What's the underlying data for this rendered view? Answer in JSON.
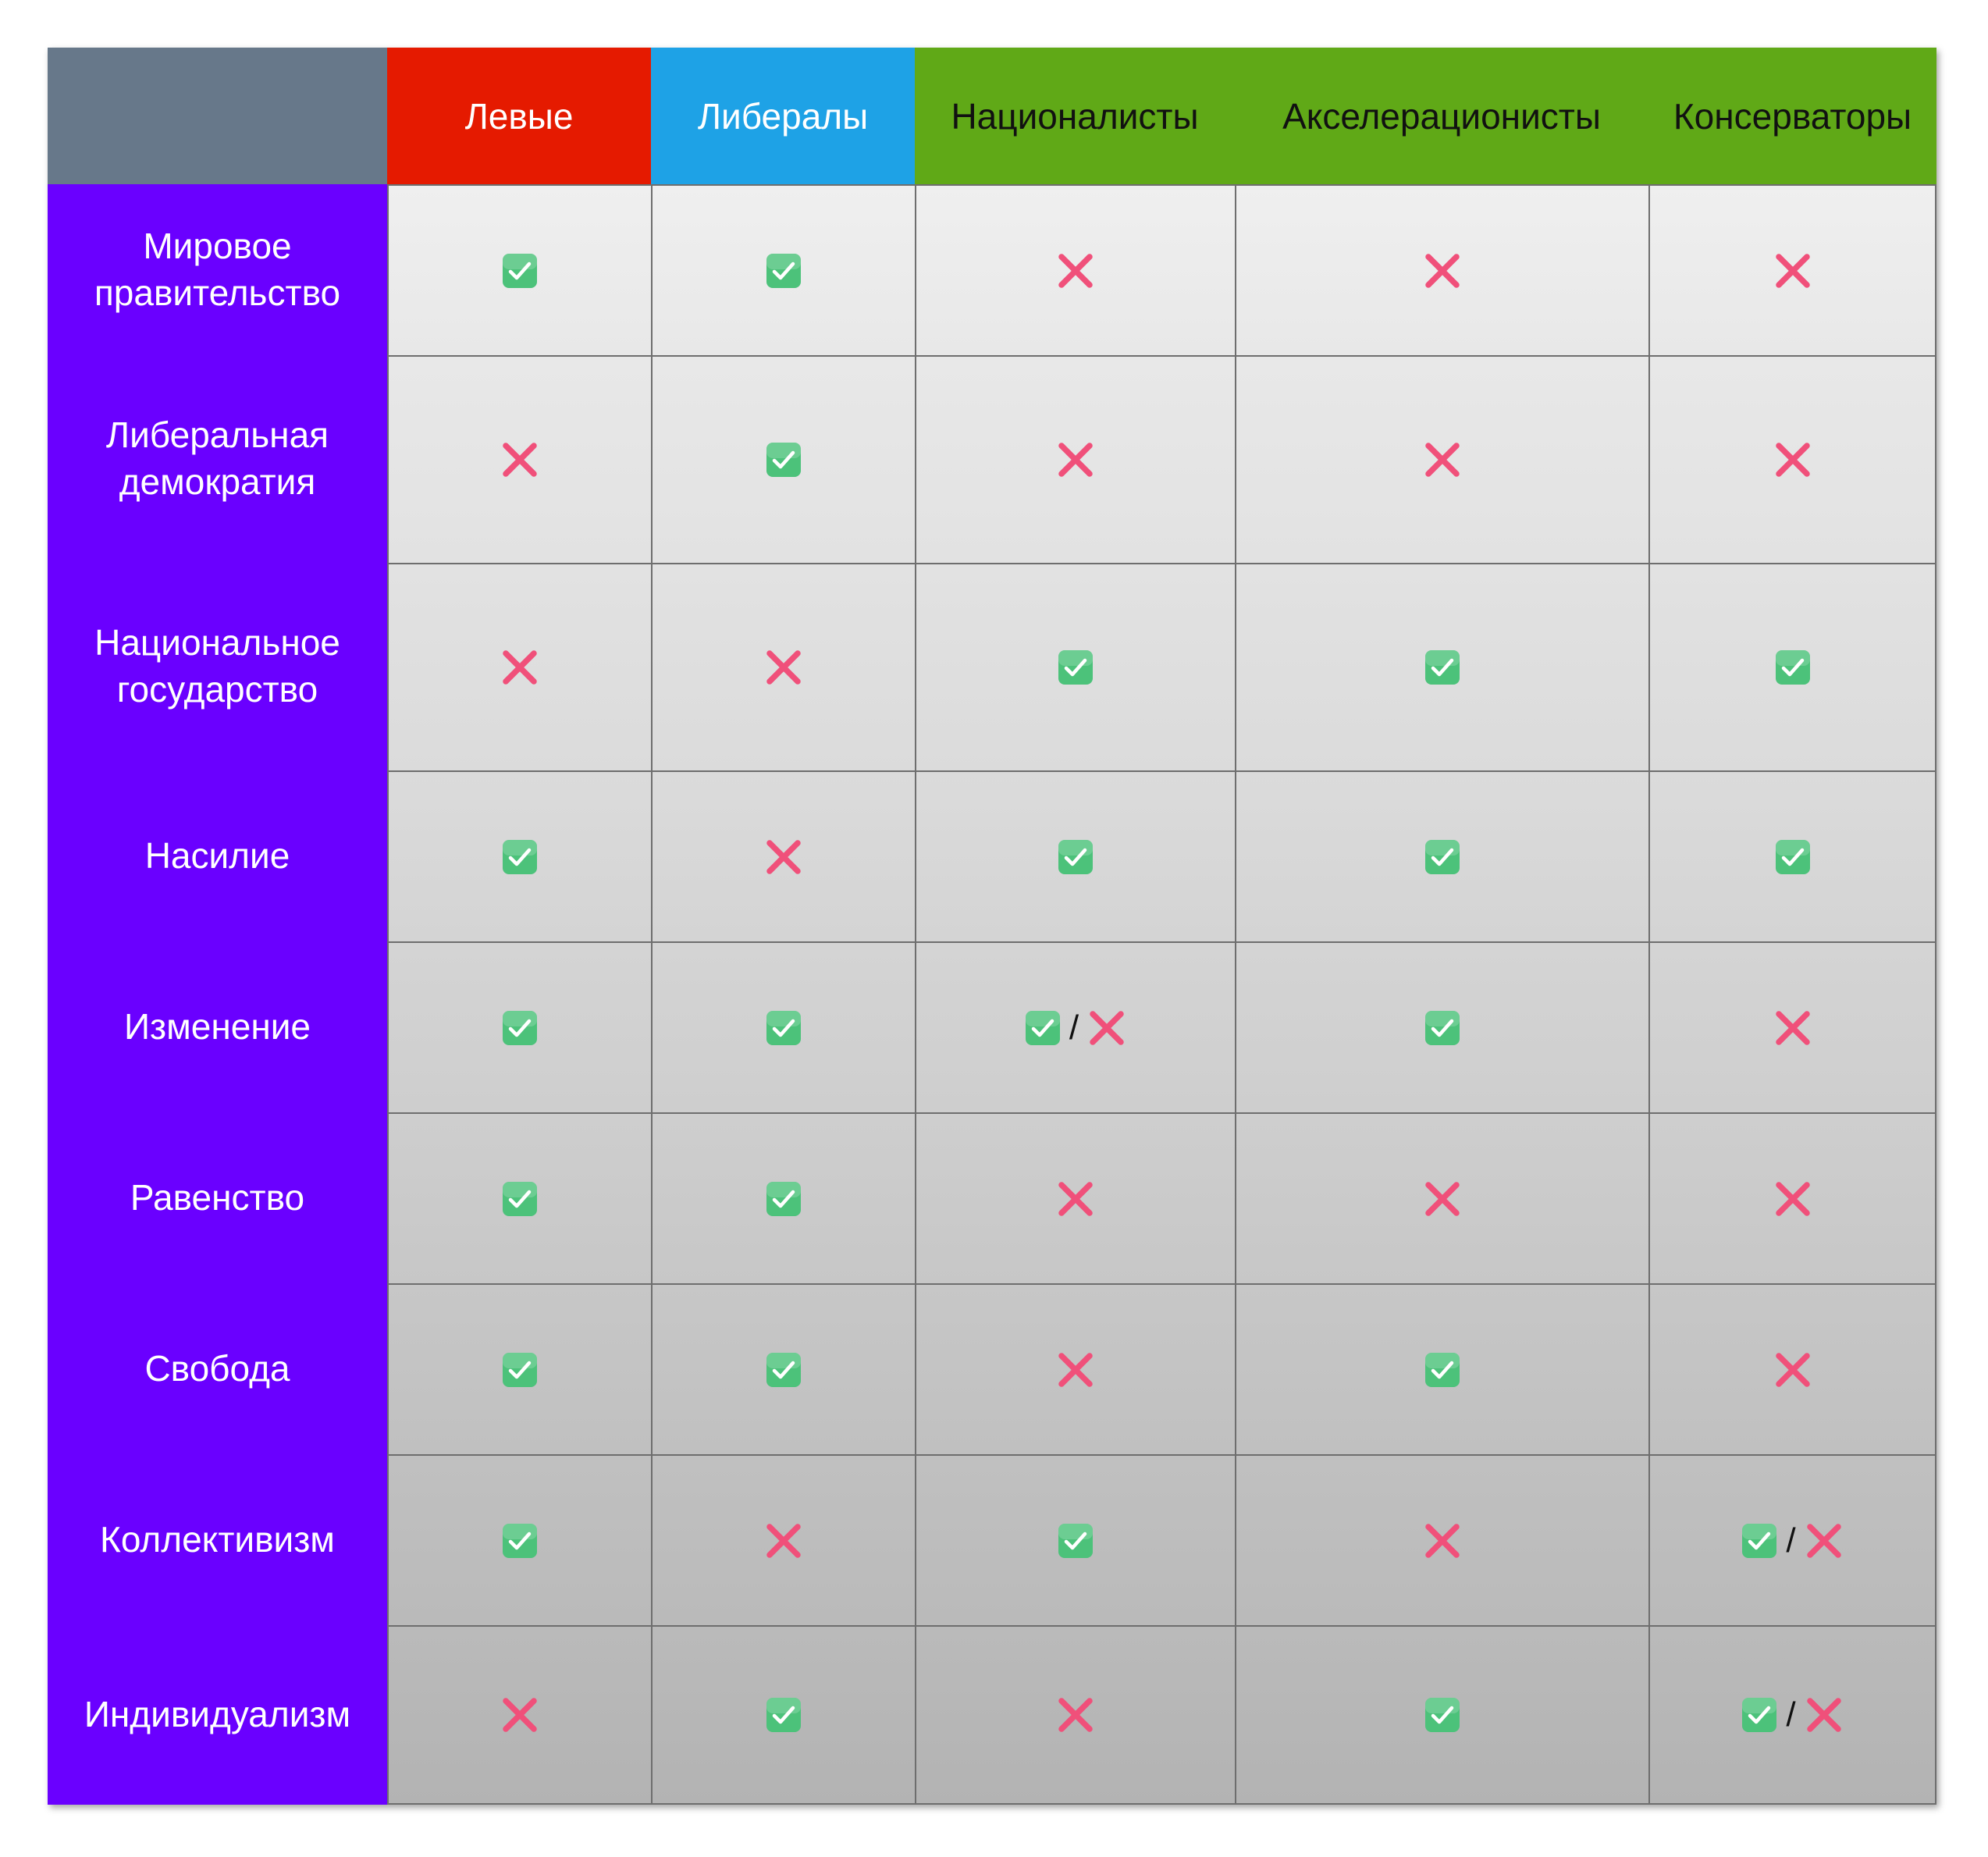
{
  "columns": [
    {
      "label": "Левые",
      "bg": "#e51a00",
      "dark": false
    },
    {
      "label": "Либералы",
      "bg": "#1ea2e6",
      "dark": false
    },
    {
      "label": "Националисты",
      "bg": "#60a917",
      "dark": true
    },
    {
      "label": "Акселерационисты",
      "bg": "#60a917",
      "dark": true
    },
    {
      "label": "Консерваторы",
      "bg": "#60a917",
      "dark": true
    }
  ],
  "rows": [
    {
      "label": "Мировое\nправительство",
      "values": [
        "yes",
        "yes",
        "no",
        "no",
        "no"
      ]
    },
    {
      "label": "Либеральная\nдемократия",
      "values": [
        "no",
        "yes",
        "no",
        "no",
        "no"
      ]
    },
    {
      "label": "Национальное\nгосударство",
      "values": [
        "no",
        "no",
        "yes",
        "yes",
        "yes"
      ]
    },
    {
      "label": "Насилие",
      "values": [
        "yes",
        "no",
        "yes",
        "yes",
        "yes"
      ]
    },
    {
      "label": "Изменение",
      "values": [
        "yes",
        "yes",
        "mixed",
        "yes",
        "no"
      ]
    },
    {
      "label": "Равенство",
      "values": [
        "yes",
        "yes",
        "no",
        "no",
        "no"
      ]
    },
    {
      "label": "Свобода",
      "values": [
        "yes",
        "yes",
        "no",
        "yes",
        "no"
      ]
    },
    {
      "label": "Коллективизм",
      "values": [
        "yes",
        "no",
        "yes",
        "no",
        "mixed"
      ]
    },
    {
      "label": "Индивидуализм",
      "values": [
        "no",
        "yes",
        "no",
        "yes",
        "mixed"
      ]
    }
  ],
  "symbols": {
    "yes": "check-icon",
    "no": "cross-icon",
    "mixed_separator": "/"
  },
  "colors": {
    "corner": "#67788a",
    "row_label_bg": "#6a00ff",
    "check_green": "#4cc27a",
    "cross_pink": "#f0507a",
    "cell_top": "#efefef",
    "cell_bottom": "#b3b3b3"
  }
}
